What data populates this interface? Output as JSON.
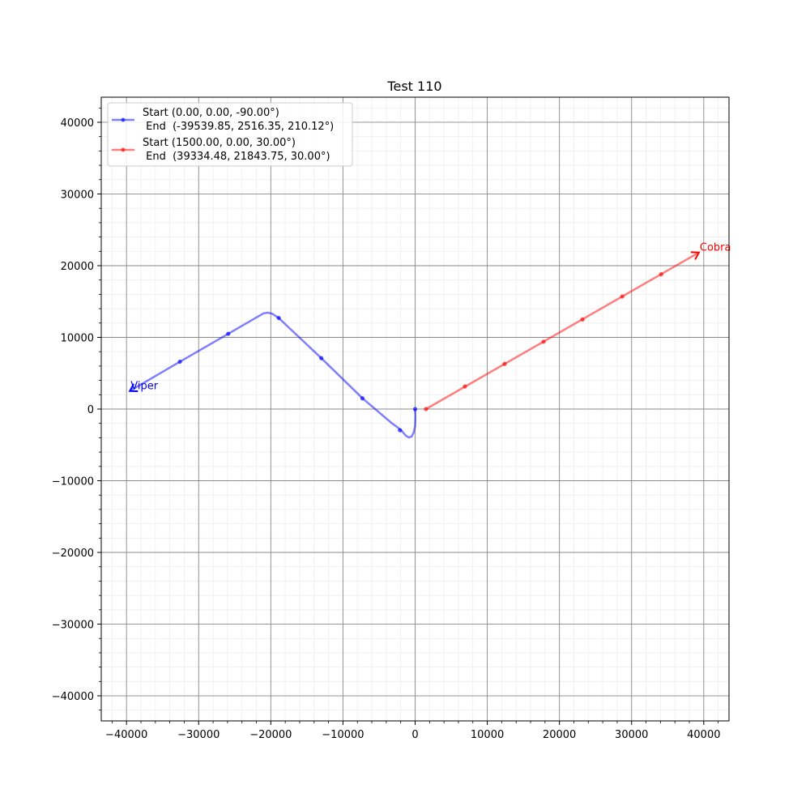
{
  "chart_data": {
    "type": "line",
    "title": "Test 110",
    "xlabel": "",
    "ylabel": "",
    "xlim": [
      -43500,
      43500
    ],
    "ylim": [
      -43500,
      43500
    ],
    "grid": true,
    "minor_grid": true,
    "legend_position": "top-left",
    "x_ticks": [
      -40000,
      -30000,
      -20000,
      -10000,
      0,
      10000,
      20000,
      30000,
      40000
    ],
    "y_ticks": [
      -40000,
      -30000,
      -20000,
      -10000,
      0,
      10000,
      20000,
      30000,
      40000
    ],
    "x_tick_labels": [
      "−40000",
      "−30000",
      "−20000",
      "−10000",
      "0",
      "10000",
      "20000",
      "30000",
      "40000"
    ],
    "y_tick_labels": [
      "−40000",
      "−30000",
      "−20000",
      "−10000",
      "0",
      "10000",
      "20000",
      "30000",
      "40000"
    ],
    "series": [
      {
        "name": "Start (0.00, 0.00, -90.00°)\n End  (-39539.85, 2516.35, 210.12°)",
        "legend_line1": "Start (0.00, 0.00, -90.00°)",
        "legend_line2": " End  (-39539.85, 2516.35, 210.12°)",
        "color": "#0000ff",
        "label": "Viper",
        "path": [
          [
            0,
            0
          ],
          [
            50,
            -1000
          ],
          [
            0,
            -2400
          ],
          [
            -200,
            -3300
          ],
          [
            -500,
            -3850
          ],
          [
            -900,
            -3950
          ],
          [
            -1300,
            -3700
          ],
          [
            -1900,
            -3000
          ],
          [
            -2500,
            -2500
          ],
          [
            -3200,
            -2000
          ],
          [
            -7300,
            1500
          ],
          [
            -13000,
            7100
          ],
          [
            -18900,
            12700
          ],
          [
            -19800,
            13300
          ],
          [
            -20400,
            13450
          ],
          [
            -21000,
            13350
          ],
          [
            -25900,
            10500
          ],
          [
            -32600,
            6600
          ],
          [
            -39539.85,
            2516.35
          ]
        ],
        "markers": [
          [
            0,
            0
          ],
          [
            -2100,
            -2950
          ],
          [
            -7300,
            1500
          ],
          [
            -13000,
            7100
          ],
          [
            -18900,
            12700
          ],
          [
            -25900,
            10500
          ],
          [
            -32600,
            6600
          ]
        ],
        "end": [
          -39539.85,
          2516.35
        ],
        "end_heading_deg": 210.12
      },
      {
        "name": "Start (1500.00, 0.00, 30.00°)\n End  (39334.48, 21843.75, 30.00°)",
        "legend_line1": "Start (1500.00, 0.00, 30.00°)",
        "legend_line2": " End  (39334.48, 21843.75, 30.00°)",
        "color": "#ff0000",
        "label": "Cobra",
        "path": [
          [
            1500,
            0
          ],
          [
            39334.48,
            21843.75
          ]
        ],
        "markers": [
          [
            1500,
            0
          ],
          [
            6900,
            3150
          ],
          [
            12400,
            6300
          ],
          [
            17800,
            9400
          ],
          [
            23200,
            12500
          ],
          [
            28700,
            15700
          ],
          [
            34100,
            18800
          ]
        ],
        "end": [
          39334.48,
          21843.75
        ],
        "end_heading_deg": 30.0
      }
    ]
  }
}
